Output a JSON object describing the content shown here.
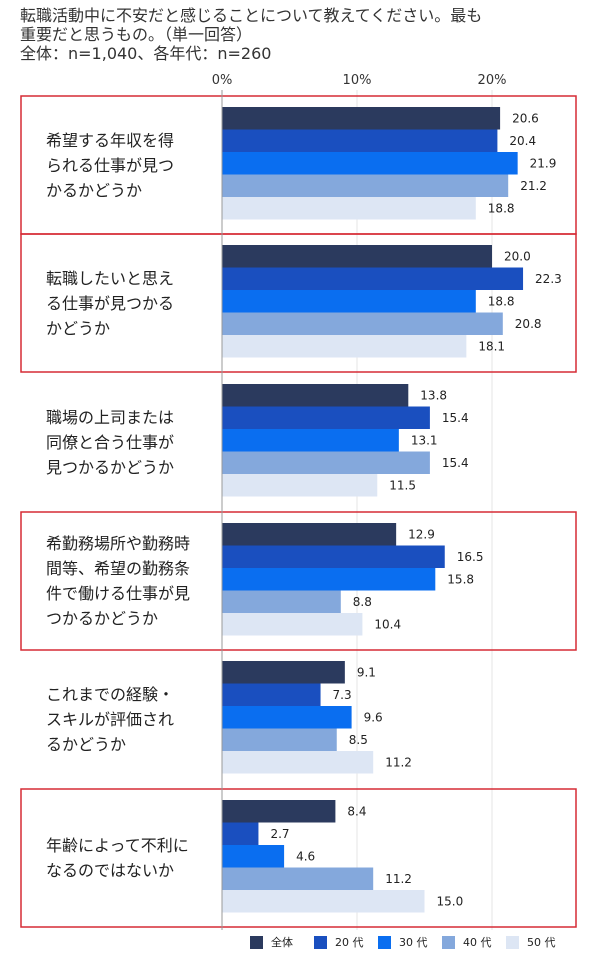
{
  "title_lines": [
    "転職活動中に不安だと感じることについて教えてください。最も",
    "重要だと思うもの。（単一回答）",
    "全体：n=1,040、各年代：n=260"
  ],
  "colors": {
    "series": [
      "#2b3a5e",
      "#1a4fbf",
      "#0a6ef0",
      "#84a8dc",
      "#dde6f4"
    ],
    "highlight_border": "#d62b35",
    "grid": "#e6e6e6",
    "axis": "#999999"
  },
  "chart_data": {
    "type": "bar",
    "orientation": "horizontal",
    "xlim": [
      0,
      25
    ],
    "ticks": [
      0,
      10,
      20
    ],
    "tick_labels": [
      "0%",
      "10%",
      "20%"
    ],
    "categories": [
      {
        "lines": [
          "希望する年収を得",
          "られる仕事が見つ",
          "かるかどうか"
        ],
        "highlighted": true
      },
      {
        "lines": [
          "転職したいと思え",
          "る仕事が見つかる",
          "かどうか"
        ],
        "highlighted": true
      },
      {
        "lines": [
          "職場の上司または",
          "同僚と合う仕事が",
          "見つかるかどうか"
        ],
        "highlighted": false
      },
      {
        "lines": [
          "希勤務場所や勤務時",
          "間等、希望の勤務条",
          "件で働ける仕事が見",
          "つかるかどうか"
        ],
        "highlighted": true
      },
      {
        "lines": [
          "これまでの経験・",
          "スキルが評価され",
          "るかどうか"
        ],
        "highlighted": false
      },
      {
        "lines": [
          "年齢によって不利に",
          "なるのではないか"
        ],
        "highlighted": true
      }
    ],
    "series": [
      {
        "name": "全体",
        "values": [
          20.6,
          20.0,
          13.8,
          12.9,
          9.1,
          8.4
        ]
      },
      {
        "name": "20 代",
        "values": [
          20.4,
          22.3,
          15.4,
          16.5,
          7.3,
          2.7
        ]
      },
      {
        "name": "30 代",
        "values": [
          21.9,
          18.8,
          13.1,
          15.8,
          9.6,
          4.6
        ]
      },
      {
        "name": "40 代",
        "values": [
          21.2,
          20.8,
          15.4,
          8.8,
          8.5,
          11.2
        ]
      },
      {
        "name": "50 代",
        "values": [
          18.8,
          18.1,
          11.5,
          10.4,
          11.2,
          15.0
        ]
      }
    ],
    "value_labels": [
      [
        "20.6",
        "20.0",
        "13.8",
        "12.9",
        "9.1",
        "8.4"
      ],
      [
        "20.4",
        "22.3",
        "15.4",
        "16.5",
        "7.3",
        "2.7"
      ],
      [
        "21.9",
        "18.8",
        "13.1",
        "15.8",
        "9.6",
        "4.6"
      ],
      [
        "21.2",
        "20.8",
        "15.4",
        "8.8",
        "8.5",
        "11.2"
      ],
      [
        "18.8",
        "18.1",
        "11.5",
        "10.4",
        "11.2",
        "15.0"
      ]
    ],
    "legend_position": "bottom-right",
    "grid": true
  }
}
